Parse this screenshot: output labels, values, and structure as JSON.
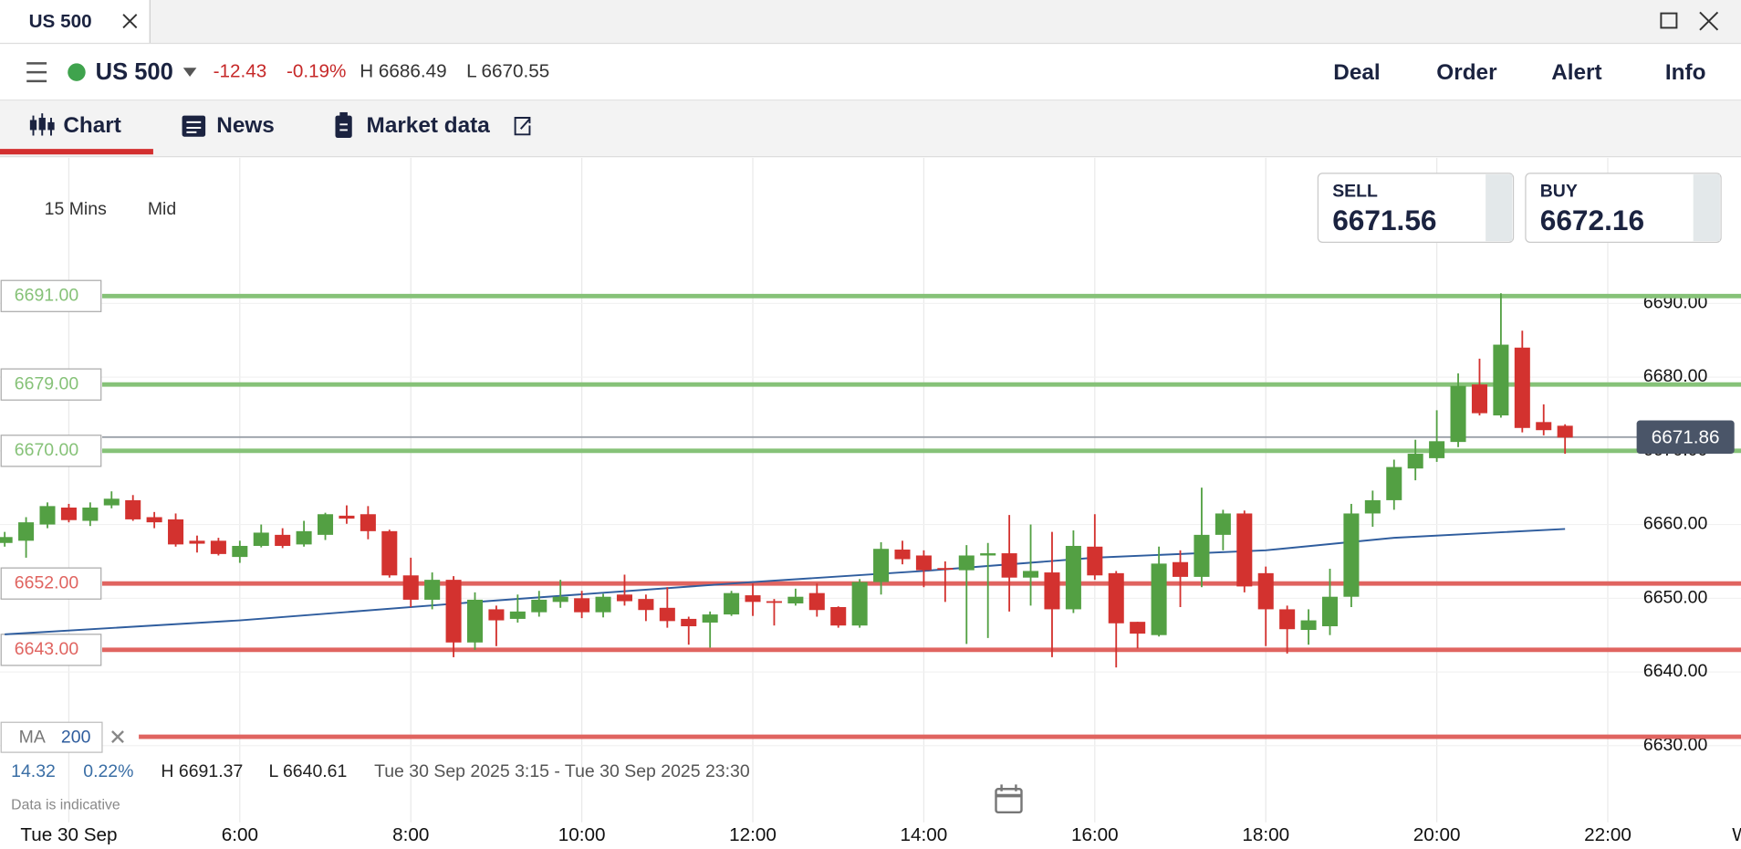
{
  "tab": {
    "title": "US 500"
  },
  "header": {
    "instrument": "US 500",
    "change": "-12.43",
    "change_pct": "-0.19%",
    "high": "H 6686.49",
    "low": "L 6670.55",
    "actions": [
      "Deal",
      "Order",
      "Alert",
      "Info"
    ]
  },
  "nav_tabs": [
    "Chart",
    "News",
    "Market data"
  ],
  "chart_settings": {
    "interval": "15 Mins",
    "price_type": "Mid"
  },
  "quote": {
    "sell_label": "SELL",
    "sell": "6671.56",
    "buy_label": "BUY",
    "buy": "6672.16"
  },
  "stats": {
    "change": "14.32",
    "change_pct": "0.22%",
    "high": "H 6691.37",
    "low": "L 6640.61",
    "range": "Tue 30 Sep 2025 3:15 - Tue 30 Sep 2025 23:30"
  },
  "disclaimer": "Data is indicative",
  "chart_data": {
    "type": "candlestick",
    "up_color": "#53a043",
    "down_color": "#d3322f",
    "x": [
      3.25,
      3.5,
      3.75,
      4,
      4.25,
      4.5,
      4.75,
      5,
      5.25,
      5.5,
      5.75,
      6,
      6.25,
      6.5,
      6.75,
      7,
      7.25,
      7.5,
      7.75,
      8,
      8.25,
      8.5,
      8.75,
      9,
      9.25,
      9.5,
      9.75,
      10,
      10.25,
      10.5,
      10.75,
      11,
      11.25,
      11.5,
      11.75,
      12,
      12.25,
      12.5,
      12.75,
      13,
      13.25,
      13.5,
      13.75,
      14,
      14.25,
      14.5,
      14.75,
      15,
      15.25,
      15.5,
      15.75,
      16,
      16.25,
      16.5,
      16.75,
      17,
      17.25,
      17.5,
      17.75,
      18,
      18.25,
      18.5,
      18.75,
      19,
      19.25,
      19.5,
      19.75,
      20,
      20.25,
      20.5,
      20.75,
      21,
      21.25,
      21.5
    ],
    "open": [
      6657.5,
      6657.8,
      6660,
      6662.3,
      6660.5,
      6662.6,
      6663.3,
      6661,
      6660.7,
      6657.8,
      6657.8,
      6655.6,
      6657.1,
      6658.6,
      6657.3,
      6658.6,
      6661.2,
      6661.4,
      6659.1,
      6653.1,
      6649.8,
      6652.5,
      6644,
      6648.5,
      6647.2,
      6648.1,
      6649.5,
      6650,
      6648.1,
      6650.5,
      6649.9,
      6648.7,
      6647.2,
      6646.7,
      6647.8,
      6650.4,
      6649.6,
      6649.3,
      6650.7,
      6648.8,
      6646.3,
      6652.2,
      6656.6,
      6655.8,
      6654.1,
      6653.8,
      6655.8,
      6656.1,
      6652.8,
      6653.5,
      6648.5,
      6657,
      6653.4,
      6646.8,
      6645,
      6654.9,
      6652.9,
      6658.6,
      6661.5,
      6653.4,
      6648.5,
      6645.7,
      6646.2,
      6650.2,
      6661.5,
      6663.3,
      6667.6,
      6669,
      6671.2,
      6679,
      6674.8,
      6684,
      6673.9,
      6673.4
    ],
    "high": [
      6659,
      6661,
      6663,
      6662.8,
      6663,
      6664.5,
      6664,
      6661.7,
      6661.5,
      6658.5,
      6658.2,
      6657.8,
      6660,
      6659.5,
      6660.5,
      6661.6,
      6662.6,
      6662.5,
      6659.3,
      6655.5,
      6653.5,
      6653,
      6650.8,
      6649,
      6650.5,
      6651,
      6652.5,
      6651,
      6650.6,
      6653.2,
      6650.5,
      6651.5,
      6647.5,
      6648.2,
      6651,
      6652,
      6649.9,
      6651.3,
      6652,
      6648.9,
      6652.6,
      6657.6,
      6657.8,
      6656.5,
      6655,
      6657.2,
      6657.5,
      6661.3,
      6660,
      6659,
      6659.2,
      6661.4,
      6653.7,
      6646.8,
      6657,
      6656.5,
      6665,
      6662,
      6661.9,
      6654.3,
      6649,
      6648.5,
      6654,
      6662.8,
      6664.6,
      6668.8,
      6671.5,
      6675.5,
      6680.5,
      6682.5,
      6691.37,
      6686.3,
      6676.3,
      6673.6
    ],
    "low": [
      6657,
      6655.5,
      6659.5,
      6660.3,
      6659.8,
      6662.2,
      6660.5,
      6659.5,
      6657,
      6656.2,
      6655.8,
      6654.8,
      6656.9,
      6656.8,
      6657,
      6657.9,
      6660.1,
      6658,
      6652.8,
      6648.8,
      6648.5,
      6642,
      6643,
      6643.5,
      6646.7,
      6647.5,
      6648.7,
      6647.3,
      6647.4,
      6649,
      6646.9,
      6646,
      6643.7,
      6643.3,
      6647.6,
      6647.6,
      6646.3,
      6649,
      6647.5,
      6646,
      6646,
      6650.5,
      6654.6,
      6651.5,
      6649.5,
      6643.8,
      6644.6,
      6648.2,
      6649,
      6642,
      6648,
      6652.5,
      6640.61,
      6643.2,
      6644.8,
      6648.8,
      6651.5,
      6656.5,
      6650.8,
      6643.5,
      6642.5,
      6643.7,
      6645,
      6648.8,
      6659.7,
      6662,
      6666,
      6668.5,
      6670.5,
      6674.8,
      6674.5,
      6672.5,
      6672.1,
      6669.6
    ],
    "close": [
      6658.3,
      6660.3,
      6662.5,
      6660.6,
      6662.3,
      6663.5,
      6660.7,
      6660.3,
      6657.3,
      6657.4,
      6656,
      6657.1,
      6658.9,
      6657.1,
      6659.1,
      6661.4,
      6660.8,
      6659.1,
      6653.1,
      6649.8,
      6652.5,
      6644,
      6649.8,
      6647,
      6648.2,
      6649.8,
      6650.2,
      6648.1,
      6650.2,
      6649.6,
      6648.4,
      6646.9,
      6646.2,
      6647.8,
      6650.7,
      6649.5,
      6649.4,
      6650.2,
      6648.4,
      6646.3,
      6652.2,
      6656.7,
      6655.3,
      6653.8,
      6654,
      6655.8,
      6656.1,
      6652.8,
      6653.7,
      6648.5,
      6657.1,
      6653.1,
      6646.6,
      6645.2,
      6654.7,
      6652.9,
      6658.6,
      6661.5,
      6651.6,
      6648.5,
      6645.8,
      6647,
      6650.2,
      6661.5,
      6663.3,
      6667.8,
      6669.6,
      6671.3,
      6678.8,
      6675.1,
      6684.4,
      6673.1,
      6672.8,
      6671.8
    ],
    "xlim": [
      3.195,
      23.558
    ],
    "ylim": [
      6619.6,
      6709.75
    ],
    "xticks": [
      {
        "value": 4,
        "label": "Tue 30 Sep"
      },
      {
        "value": 6,
        "label": "6:00"
      },
      {
        "value": 8,
        "label": "8:00"
      },
      {
        "value": 10,
        "label": "10:00"
      },
      {
        "value": 12,
        "label": "12:00"
      },
      {
        "value": 14,
        "label": "14:00"
      },
      {
        "value": 16,
        "label": "16:00"
      },
      {
        "value": 18,
        "label": "18:00"
      },
      {
        "value": 20,
        "label": "20:00"
      },
      {
        "value": 22,
        "label": "22:00"
      }
    ],
    "next_day_label": "W",
    "yticks": [
      {
        "value": 6630,
        "label": "6630.00"
      },
      {
        "value": 6640,
        "label": "6640.00"
      },
      {
        "value": 6650,
        "label": "6650.00"
      },
      {
        "value": 6660,
        "label": "6660.00"
      },
      {
        "value": 6670,
        "label": "6670.00"
      },
      {
        "value": 6680,
        "label": "6680.00"
      },
      {
        "value": 6690,
        "label": "6690.00"
      }
    ],
    "grid": true,
    "levels": [
      {
        "value": 6691,
        "label": "6691.00",
        "color": "#86c278"
      },
      {
        "value": 6679,
        "label": "6679.00",
        "color": "#86c278"
      },
      {
        "value": 6670,
        "label": "6670.00",
        "color": "#86c278"
      },
      {
        "value": 6652,
        "label": "6652.00",
        "color": "#e06460"
      },
      {
        "value": 6643,
        "label": "6643.00",
        "color": "#e06460"
      },
      {
        "value": 6631.2,
        "color": "#e06460"
      }
    ],
    "current_price": 6671.86,
    "moving_average": {
      "name": "MA",
      "period": 200,
      "color": "#2f5d9e",
      "x": [
        3.25,
        6,
        9,
        12,
        14,
        16,
        18,
        19.5,
        21.5
      ],
      "values": [
        6645.1,
        6647.0,
        6649.7,
        6652.2,
        6653.7,
        6655.5,
        6656.5,
        6658.2,
        6659.4
      ]
    }
  }
}
